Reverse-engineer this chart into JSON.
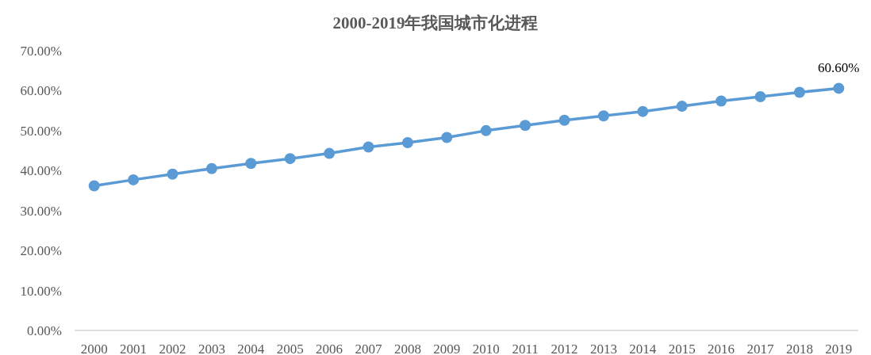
{
  "chart_data": {
    "type": "line",
    "title": "2000-2019年我国城市化进程",
    "categories": [
      "2000",
      "2001",
      "2002",
      "2003",
      "2004",
      "2005",
      "2006",
      "2007",
      "2008",
      "2009",
      "2010",
      "2011",
      "2012",
      "2013",
      "2014",
      "2015",
      "2016",
      "2017",
      "2018",
      "2019"
    ],
    "series": [
      {
        "color": "#5b9bd5",
        "values": [
          36.2,
          37.7,
          39.1,
          40.5,
          41.8,
          43.0,
          44.3,
          45.9,
          47.0,
          48.3,
          50.0,
          51.3,
          52.6,
          53.7,
          54.8,
          56.1,
          57.4,
          58.5,
          59.6,
          60.6
        ],
        "value_labels": [
          null,
          null,
          null,
          null,
          null,
          null,
          null,
          null,
          null,
          null,
          null,
          null,
          null,
          null,
          null,
          null,
          null,
          null,
          null,
          "60.60%"
        ]
      }
    ],
    "ylim": [
      0,
      70
    ],
    "yticks": [
      {
        "value": 0,
        "label": "0.00%"
      },
      {
        "value": 10,
        "label": "10.00%"
      },
      {
        "value": 20,
        "label": "20.00%"
      },
      {
        "value": 30,
        "label": "30.00%"
      },
      {
        "value": 40,
        "label": "40.00%"
      },
      {
        "value": 50,
        "label": "50.00%"
      },
      {
        "value": 60,
        "label": "60.00%"
      },
      {
        "value": 70,
        "label": "70.00%"
      }
    ],
    "grid": false,
    "marker": "circle",
    "line_style": "solid"
  }
}
